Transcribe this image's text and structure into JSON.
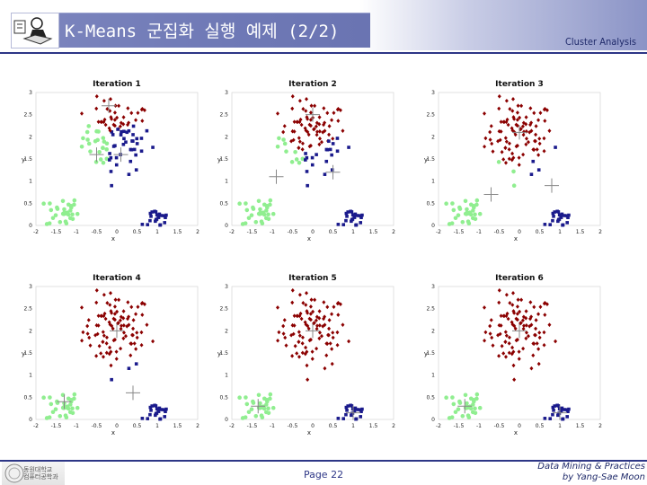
{
  "header": {
    "title": "K-Means 군집화 실행 예제 (2/2)",
    "subtitle": "Cluster Analysis"
  },
  "footer": {
    "page": "Page 22",
    "course": "Data Mining & Practices",
    "author": "by Yang-Sae Moon",
    "logo_text": [
      "동원대학교",
      "컴퓨터공학과"
    ]
  },
  "colors": {
    "header_bar": "#6f79b6",
    "rule": "#2d3686",
    "cluster_light_green": "#90ee90",
    "cluster_dark_blue": "#1a1a8c",
    "cluster_dark_red": "#8b0000"
  },
  "icons": {
    "header_logo": "person-with-book-icon",
    "footer_logo": "university-seal-icon"
  },
  "chart_data": [
    {
      "type": "scatter",
      "title": "Iteration 1",
      "xlabel": "x",
      "ylabel": "y",
      "xlim": [
        -2,
        2
      ],
      "ylim": [
        0,
        3
      ],
      "xticks": [
        "-2",
        "-1.5",
        "-1",
        "-0.5",
        "0",
        "0.5",
        "1",
        "1.5",
        "2"
      ],
      "yticks": [
        "0",
        "0.5",
        "1",
        "1.5",
        "2",
        "2.5",
        "3"
      ],
      "centroids": [
        [
          -0.5,
          1.6
        ],
        [
          -0.2,
          2.7
        ],
        [
          0.1,
          1.6
        ]
      ]
    },
    {
      "type": "scatter",
      "title": "Iteration 2",
      "xlabel": "x",
      "ylabel": "y",
      "xlim": [
        -2,
        2
      ],
      "ylim": [
        0,
        3
      ],
      "xticks": [
        "-2",
        "-1.5",
        "-1",
        "-0.5",
        "0",
        "0.5",
        "1",
        "1.5",
        "2"
      ],
      "yticks": [
        "0",
        "0.5",
        "1",
        "1.5",
        "2",
        "2.5",
        "3"
      ],
      "centroids": [
        [
          -0.9,
          1.1
        ],
        [
          0.0,
          2.5
        ],
        [
          0.5,
          1.2
        ]
      ]
    },
    {
      "type": "scatter",
      "title": "Iteration 3",
      "xlabel": "x",
      "ylabel": "y",
      "xlim": [
        -2,
        2
      ],
      "ylim": [
        0,
        3
      ],
      "xticks": [
        "-2",
        "-1.5",
        "-1",
        "-0.5",
        "0",
        "0.5",
        "1",
        "1.5",
        "2"
      ],
      "yticks": [
        "0",
        "0.5",
        "1",
        "1.5",
        "2",
        "2.5",
        "3"
      ],
      "centroids": [
        [
          -0.7,
          0.7
        ],
        [
          0.0,
          2.1
        ],
        [
          0.8,
          0.9
        ]
      ]
    },
    {
      "type": "scatter",
      "title": "Iteration 4",
      "xlabel": "x",
      "ylabel": "y",
      "xlim": [
        -2,
        2
      ],
      "ylim": [
        0,
        3
      ],
      "xticks": [
        "-2",
        "-1.5",
        "-1",
        "-0.5",
        "0",
        "0.5",
        "1",
        "1.5",
        "2"
      ],
      "yticks": [
        "0",
        "0.5",
        "1",
        "1.5",
        "2",
        "2.5",
        "3"
      ],
      "centroids": [
        [
          -1.3,
          0.4
        ],
        [
          0.0,
          2.0
        ],
        [
          0.4,
          0.6
        ]
      ]
    },
    {
      "type": "scatter",
      "title": "Iteration 5",
      "xlabel": "x",
      "ylabel": "y",
      "xlim": [
        -2,
        2
      ],
      "ylim": [
        0,
        3
      ],
      "xticks": [
        "-2",
        "-1.5",
        "-1",
        "-0.5",
        "0",
        "0.5",
        "1",
        "1.5",
        "2"
      ],
      "yticks": [
        "0",
        "0.5",
        "1",
        "1.5",
        "2",
        "2.5",
        "3"
      ],
      "centroids": [
        [
          -1.35,
          0.3
        ],
        [
          0.0,
          2.0
        ],
        [
          1.0,
          0.15
        ]
      ]
    },
    {
      "type": "scatter",
      "title": "Iteration 6",
      "xlabel": "x",
      "ylabel": "y",
      "xlim": [
        -2,
        2
      ],
      "ylim": [
        0,
        3
      ],
      "xticks": [
        "-2",
        "-1.5",
        "-1",
        "-0.5",
        "0",
        "0.5",
        "1",
        "1.5",
        "2"
      ],
      "yticks": [
        "0",
        "0.5",
        "1",
        "1.5",
        "2",
        "2.5",
        "3"
      ],
      "centroids": [
        [
          -1.35,
          0.3
        ],
        [
          0.0,
          2.0
        ],
        [
          1.0,
          0.15
        ]
      ]
    }
  ]
}
